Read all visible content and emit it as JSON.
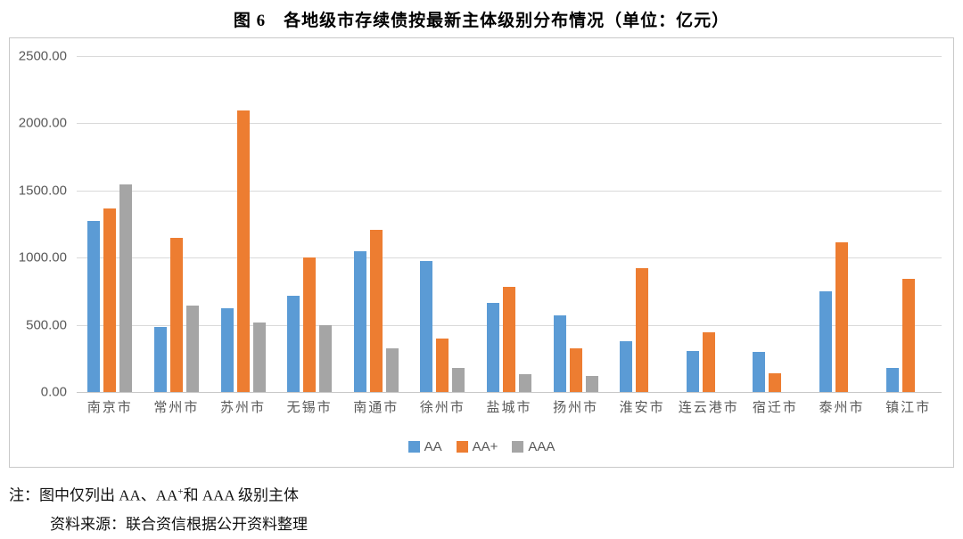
{
  "page": {
    "title": "图 6　各地级市存续债按最新主体级别分布情况（单位：亿元）"
  },
  "chart_data": {
    "type": "bar",
    "title": "图 6 各地级市存续债按最新主体级别分布情况（单位：亿元）",
    "unit": "亿元",
    "categories": [
      "南京市",
      "常州市",
      "苏州市",
      "无锡市",
      "南通市",
      "徐州市",
      "盐城市",
      "扬州市",
      "淮安市",
      "连云港市",
      "宿迁市",
      "泰州市",
      "镇江市"
    ],
    "series": [
      {
        "name": "AA",
        "color": "#5B9BD5",
        "values": [
          1275,
          485,
          625,
          715,
          1050,
          975,
          660,
          570,
          375,
          305,
          300,
          750,
          180
        ]
      },
      {
        "name": "AA+",
        "color": "#ED7D31",
        "values": [
          1365,
          1150,
          2095,
          1000,
          1210,
          395,
          785,
          325,
          920,
          445,
          140,
          1115,
          845
        ]
      },
      {
        "name": "AAA",
        "color": "#A5A5A5",
        "values": [
          1545,
          645,
          520,
          500,
          325,
          180,
          130,
          120,
          0,
          0,
          0,
          0,
          0
        ]
      }
    ],
    "ylim": [
      0,
      2500
    ],
    "ytick_step": 500,
    "ytick_labels": [
      "0.00",
      "500.00",
      "1000.00",
      "1500.00",
      "2000.00",
      "2500.00"
    ],
    "grid": true,
    "legend_position": "bottom",
    "gridline_color": "#d9d9d9",
    "axis_text_color": "#595959"
  },
  "notes": {
    "line1_prefix": "注：图中仅列出 AA、AA",
    "line1_sup": "+",
    "line1_suffix": "和 AAA 级别主体",
    "line2": "资料来源：联合资信根据公开资料整理"
  }
}
